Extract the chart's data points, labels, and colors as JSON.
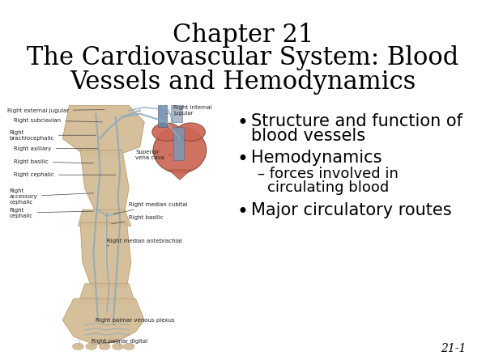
{
  "title_line1": "Chapter 21",
  "title_line2": "The Cardiovascular System: Blood",
  "title_line3": "Vessels and Hemodynamics",
  "title_fontsize": 22,
  "background_color": "#ffffff",
  "bullet_fontsize": 15,
  "sub_bullet_fontsize": 13,
  "page_number": "21-1",
  "arm_color": "#d4bc96",
  "arm_edge": "#b89a6e",
  "vein_color": "#8aaabb",
  "heart_color": "#cc6655",
  "vessel_blue": "#7799bb",
  "vessel_light": "#aabbcc",
  "label_fontsize": 5.0,
  "label_color": "#222222"
}
